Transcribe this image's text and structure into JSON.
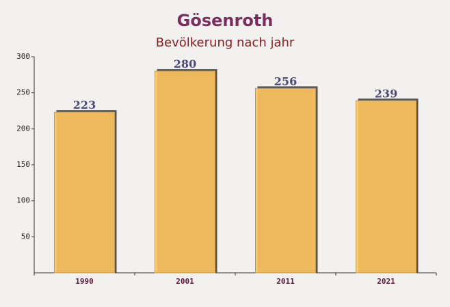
{
  "chart_data": {
    "type": "bar",
    "title": "Gösenroth",
    "subtitle": "Bevölkerung nach jahr",
    "categories": [
      "1990",
      "2001",
      "2011",
      "2021"
    ],
    "values": [
      223,
      280,
      256,
      239
    ],
    "color": "#ffc55e",
    "ylim": [
      0,
      300
    ],
    "yticks": [
      50,
      100,
      150,
      200,
      250,
      300
    ],
    "grid": false
  }
}
